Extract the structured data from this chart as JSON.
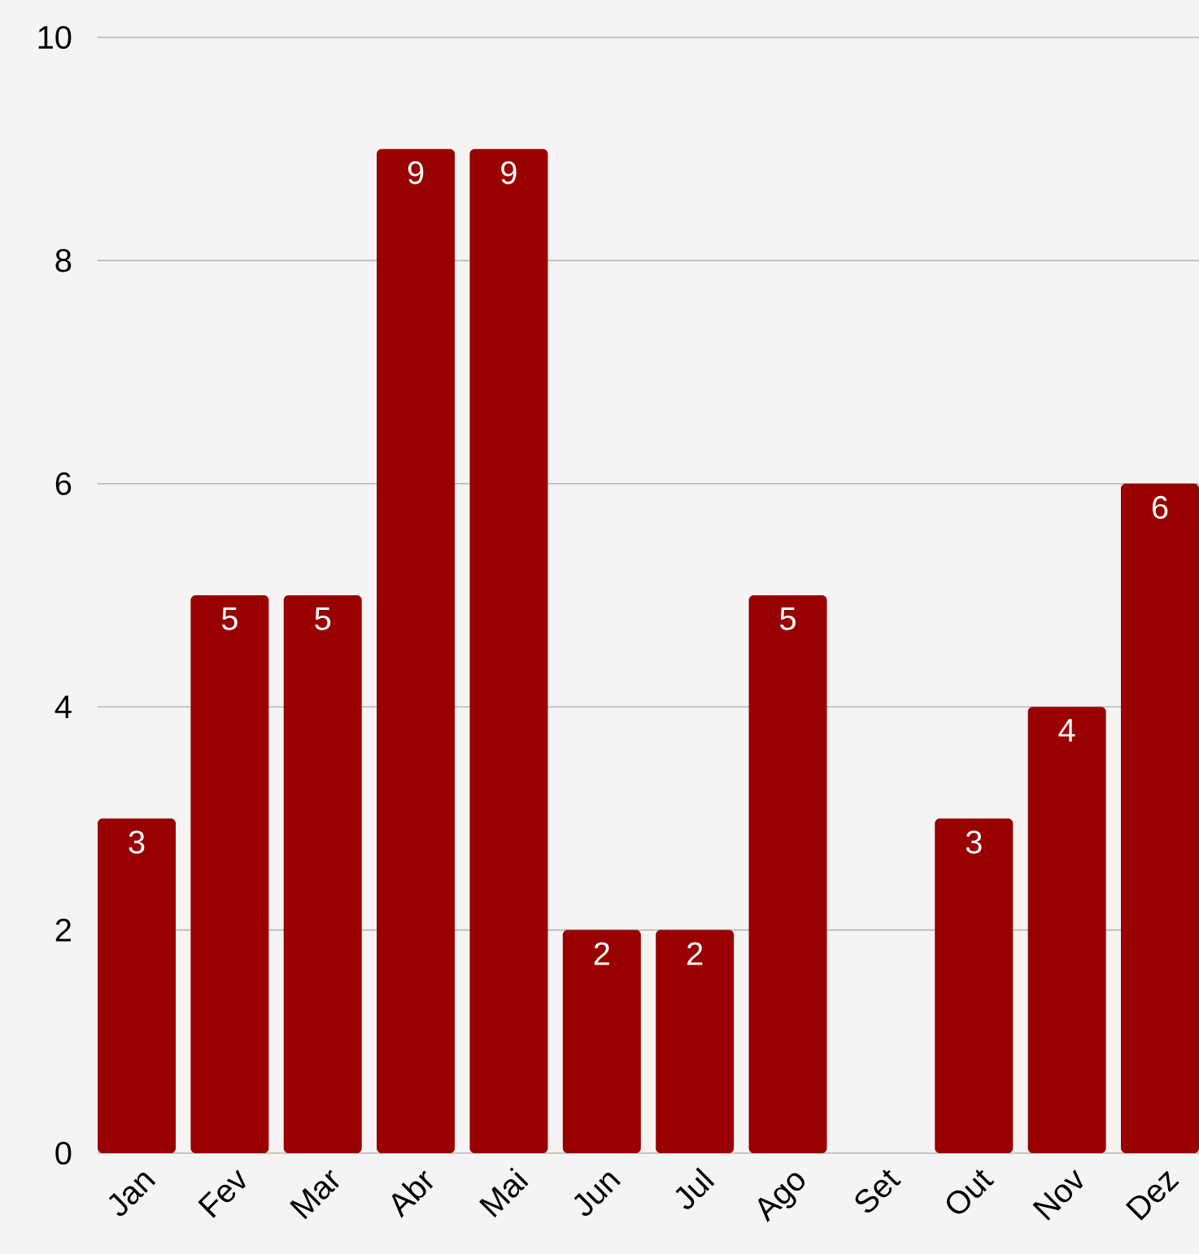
{
  "chart_data": {
    "type": "bar",
    "categories": [
      "Jan",
      "Fev",
      "Mar",
      "Abr",
      "Mai",
      "Jun",
      "Jul",
      "Ago",
      "Set",
      "Out",
      "Nov",
      "Dez"
    ],
    "values": [
      3,
      5,
      5,
      9,
      9,
      2,
      2,
      5,
      0,
      3,
      4,
      6
    ],
    "value_labels": [
      "3",
      "5",
      "5",
      "9",
      "9",
      "2",
      "2",
      "5",
      null,
      "3",
      "4",
      "6"
    ],
    "color": "#990000",
    "ylim": [
      0,
      10
    ],
    "yticks": [
      0,
      2,
      4,
      6,
      8,
      10
    ],
    "grid": "y"
  }
}
